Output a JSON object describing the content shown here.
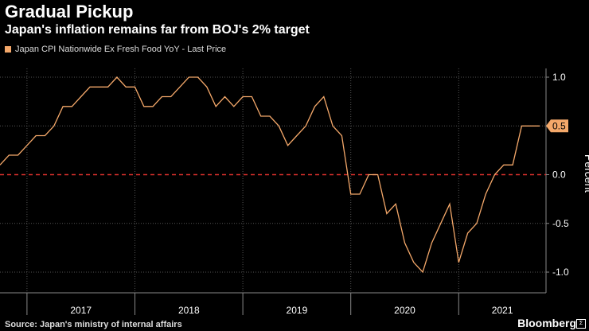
{
  "header": {
    "title": "Gradual Pickup",
    "subtitle": "Japan's inflation remains far from BOJ's 2% target"
  },
  "footer": {
    "source": "Source: Japan's ministry of internal affairs",
    "brand": "Bloomberg",
    "brand_mark": "Σ"
  },
  "colors": {
    "series": "#f4a86a",
    "zero_line": "#d9302c",
    "background": "#000000",
    "grid": "#555555"
  },
  "chart_data": {
    "type": "line",
    "ylabel": "Percent",
    "ylim": [
      -1.0,
      1.0
    ],
    "yticks": [
      1.0,
      0.5,
      0.0,
      -0.5,
      -1.0
    ],
    "ytick_labels": [
      "1.0",
      "0.5",
      "0.0",
      "-0.5",
      "-1.0"
    ],
    "x_categories": [
      "2017",
      "2018",
      "2019",
      "2020",
      "2021"
    ],
    "x_start": "2016-10",
    "grid": true,
    "reference_line": 0.0,
    "last_value_label": "0.5",
    "series": [
      {
        "name": "Japan CPI Nationwide Ex Fresh Food YoY - Last Price",
        "x": [
          "2016-10",
          "2016-11",
          "2016-12",
          "2017-01",
          "2017-02",
          "2017-03",
          "2017-04",
          "2017-05",
          "2017-06",
          "2017-07",
          "2017-08",
          "2017-09",
          "2017-10",
          "2017-11",
          "2017-12",
          "2018-01",
          "2018-02",
          "2018-03",
          "2018-04",
          "2018-05",
          "2018-06",
          "2018-07",
          "2018-08",
          "2018-09",
          "2018-10",
          "2018-11",
          "2018-12",
          "2019-01",
          "2019-02",
          "2019-03",
          "2019-04",
          "2019-05",
          "2019-06",
          "2019-07",
          "2019-08",
          "2019-09",
          "2019-10",
          "2019-11",
          "2019-12",
          "2020-01",
          "2020-02",
          "2020-03",
          "2020-04",
          "2020-05",
          "2020-06",
          "2020-07",
          "2020-08",
          "2020-09",
          "2020-10",
          "2020-11",
          "2020-12",
          "2021-01",
          "2021-02",
          "2021-03",
          "2021-04",
          "2021-05",
          "2021-06",
          "2021-07",
          "2021-08",
          "2021-09",
          "2021-10"
        ],
        "values": [
          0.1,
          0.2,
          0.2,
          0.3,
          0.4,
          0.4,
          0.5,
          0.7,
          0.7,
          0.8,
          0.9,
          0.9,
          0.9,
          1.0,
          0.9,
          0.9,
          0.7,
          0.7,
          0.8,
          0.8,
          0.9,
          1.0,
          1.0,
          0.9,
          0.7,
          0.8,
          0.7,
          0.8,
          0.8,
          0.6,
          0.6,
          0.5,
          0.3,
          0.4,
          0.5,
          0.7,
          0.8,
          0.5,
          0.4,
          -0.2,
          -0.2,
          0.0,
          0.0,
          -0.4,
          -0.3,
          -0.7,
          -0.9,
          -1.0,
          -0.7,
          -0.5,
          -0.3,
          -0.9,
          -0.6,
          -0.5,
          -0.2,
          0.0,
          0.1,
          0.1,
          0.5,
          0.5,
          0.5
        ]
      }
    ]
  }
}
